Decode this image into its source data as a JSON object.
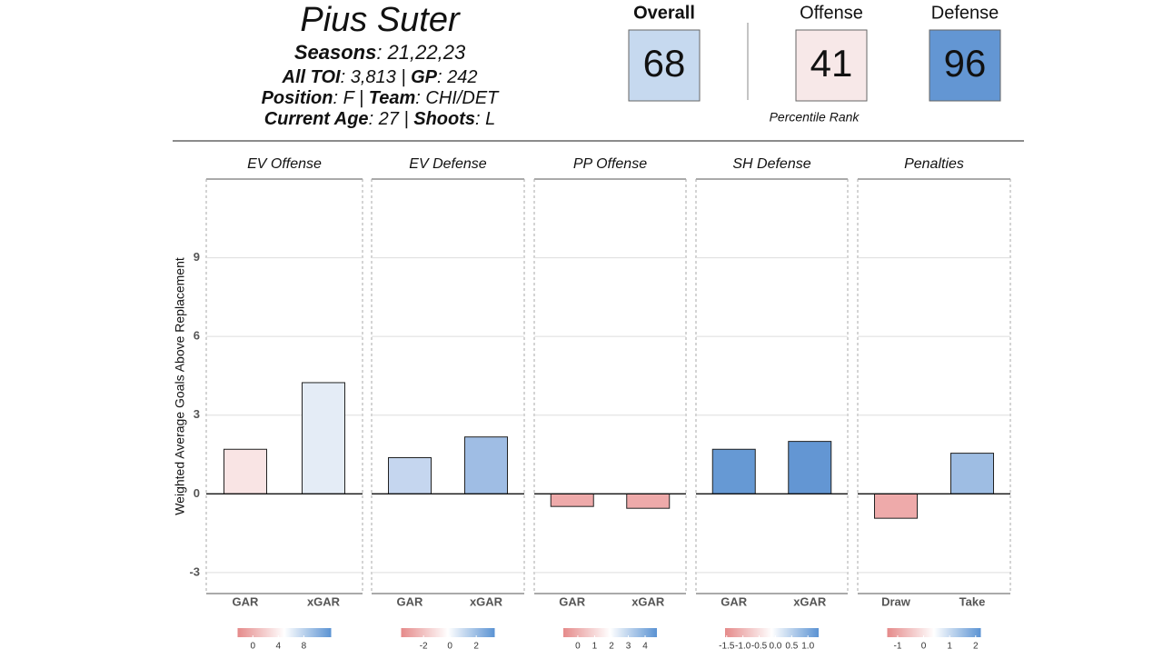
{
  "header": {
    "name": "Pius Suter",
    "lines": [
      [
        {
          "label": "Seasons",
          "value": ": 21,22,23"
        }
      ],
      [
        {
          "label": "All TOI",
          "value": ": 3,813 | "
        },
        {
          "label": "GP",
          "value": ": 242"
        }
      ],
      [
        {
          "label": "Position",
          "value": ": F | "
        },
        {
          "label": "Team",
          "value": ": CHI/DET"
        }
      ],
      [
        {
          "label": "Current Age",
          "value": ": 27 | "
        },
        {
          "label": "Shoots",
          "value": ": L"
        }
      ]
    ]
  },
  "scores": {
    "items": [
      {
        "label": "Overall",
        "value": 68,
        "color": "#c6d9ef"
      },
      {
        "label": "Offense",
        "value": 41,
        "color": "#f7e8e8"
      },
      {
        "label": "Defense",
        "value": 96,
        "color": "#6396d3"
      }
    ],
    "note": "Percentile Rank"
  },
  "chart_data": {
    "type": "facet-bar",
    "ylabel": "Weighted Average Goals Above Replacement",
    "ylim": [
      -3.8,
      12
    ],
    "yticks": [
      -3,
      0,
      3,
      6,
      9
    ],
    "grid": true,
    "panels": [
      {
        "title": "EV Offense",
        "categories": [
          "GAR",
          "xGAR"
        ],
        "values": [
          1.7,
          4.24
        ],
        "colors": [
          "#f9e4e4",
          "#e4ecf6"
        ],
        "colorbar": {
          "lim": [
            -2.4,
            12.3
          ],
          "ticks": [
            0,
            4,
            8
          ],
          "colors": [
            "#e58a8a",
            "#ffffff",
            "#5b93d3"
          ]
        }
      },
      {
        "title": "EV Defense",
        "categories": [
          "GAR",
          "xGAR"
        ],
        "values": [
          1.38,
          2.17
        ],
        "colors": [
          "#c5d6ef",
          "#9fbde4"
        ],
        "colorbar": {
          "lim": [
            -3.7,
            3.4
          ],
          "ticks": [
            -2,
            0,
            2
          ],
          "colors": [
            "#e58a8a",
            "#ffffff",
            "#5b93d3"
          ]
        }
      },
      {
        "title": "PP Offense",
        "categories": [
          "GAR",
          "xGAR"
        ],
        "values": [
          -0.48,
          -0.55
        ],
        "colors": [
          "#eeaaaa",
          "#eeaaaa"
        ],
        "colorbar": {
          "lim": [
            -0.86,
            4.7
          ],
          "ticks": [
            0,
            1,
            2,
            3,
            4
          ],
          "colors": [
            "#e58a8a",
            "#ffffff",
            "#5b93d3"
          ]
        }
      },
      {
        "title": "SH Defense",
        "categories": [
          "GAR",
          "xGAR"
        ],
        "values": [
          1.7,
          2.0
        ],
        "colors": [
          "#6699d4",
          "#6396d3"
        ],
        "colorbar": {
          "lim": [
            -1.55,
            1.33
          ],
          "ticks": [
            -1.5,
            {
              "value": -1,
              "label": "-1.0"
            },
            -0.5,
            {
              "value": 0,
              "label": "0.0"
            },
            0.5,
            {
              "value": 1,
              "label": "1.0"
            }
          ],
          "colors": [
            "#e58a8a",
            "#ffffff",
            "#5b93d3"
          ]
        }
      },
      {
        "title": "Penalties",
        "categories": [
          "Draw",
          "Take"
        ],
        "values": [
          -0.93,
          1.55
        ],
        "colors": [
          "#eeaaaa",
          "#9ebde3"
        ],
        "colorbar": {
          "lim": [
            -1.4,
            2.2
          ],
          "ticks": [
            -1,
            0,
            1,
            2
          ],
          "colors": [
            "#e58a8a",
            "#ffffff",
            "#5b93d3"
          ]
        }
      }
    ]
  }
}
